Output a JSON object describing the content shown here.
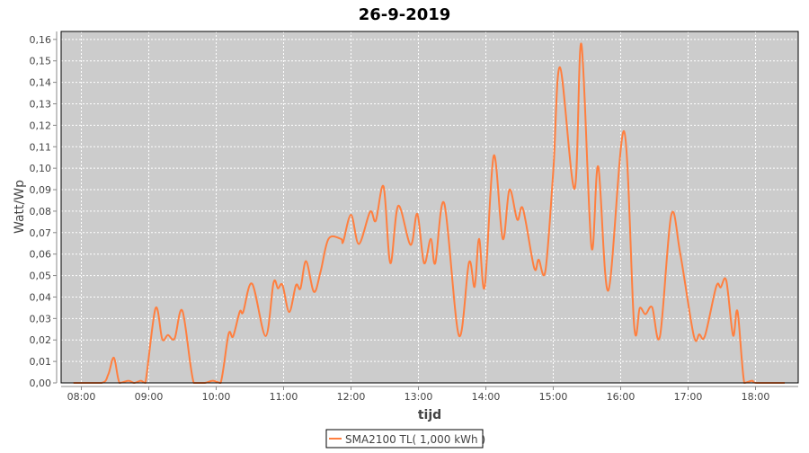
{
  "chart_data": {
    "type": "line",
    "title": "26-9-2019",
    "xlabel": "tijd",
    "ylabel": "Watt/Wp",
    "xlim": [
      "07:42",
      "18:38"
    ],
    "ylim": [
      0,
      0.1637
    ],
    "x_ticks": [
      "08:00",
      "09:00",
      "10:00",
      "11:00",
      "12:00",
      "13:00",
      "14:00",
      "15:00",
      "16:00",
      "17:00",
      "18:00"
    ],
    "y_ticks": [
      "0,00",
      "0,01",
      "0,02",
      "0,03",
      "0,04",
      "0,05",
      "0,06",
      "0,07",
      "0,08",
      "0,09",
      "0,10",
      "0,11",
      "0,12",
      "0,13",
      "0,14",
      "0,15",
      "0,16"
    ],
    "grid": true,
    "legend_placement": "bottom",
    "colors": {
      "series": "#ff7f3f",
      "plot_background": "#cccccc",
      "grid": "#ffffff"
    },
    "series": [
      {
        "name": "SMA2100 TL( 1,000 kWh )",
        "points": [
          [
            "07:53",
            0
          ],
          [
            "08:18",
            0
          ],
          [
            "08:24",
            0.004
          ],
          [
            "08:29",
            0.0117
          ],
          [
            "08:34",
            0
          ],
          [
            "08:42",
            0.001
          ],
          [
            "08:47",
            0
          ],
          [
            "08:53",
            0.001
          ],
          [
            "08:57",
            0
          ],
          [
            "09:06",
            0.0347
          ],
          [
            "09:12",
            0.0204
          ],
          [
            "09:17",
            0.0223
          ],
          [
            "09:23",
            0.0207
          ],
          [
            "09:30",
            0.0335
          ],
          [
            "09:40",
            0
          ],
          [
            "09:50",
            0
          ],
          [
            "09:57",
            0.001
          ],
          [
            "10:04",
            0
          ],
          [
            "10:11",
            0.0227
          ],
          [
            "10:15",
            0.0216
          ],
          [
            "10:21",
            0.0332
          ],
          [
            "10:24",
            0.033
          ],
          [
            "10:32",
            0.0462
          ],
          [
            "10:44",
            0.0218
          ],
          [
            "10:51",
            0.0466
          ],
          [
            "10:55",
            0.044
          ],
          [
            "10:59",
            0.0456
          ],
          [
            "11:05",
            0.033
          ],
          [
            "11:11",
            0.0455
          ],
          [
            "11:15",
            0.044
          ],
          [
            "11:20",
            0.0567
          ],
          [
            "11:27",
            0.0424
          ],
          [
            "11:33",
            0.052
          ],
          [
            "11:40",
            0.0671
          ],
          [
            "11:51",
            0.0671
          ],
          [
            "11:53",
            0.0657
          ],
          [
            "12:00",
            0.0783
          ],
          [
            "12:07",
            0.0647
          ],
          [
            "12:17",
            0.0797
          ],
          [
            "12:22",
            0.0755
          ],
          [
            "12:29",
            0.0914
          ],
          [
            "12:35",
            0.0558
          ],
          [
            "12:42",
            0.0825
          ],
          [
            "12:53",
            0.0643
          ],
          [
            "12:59",
            0.0787
          ],
          [
            "13:05",
            0.0558
          ],
          [
            "13:11",
            0.0671
          ],
          [
            "13:15",
            0.0558
          ],
          [
            "13:23",
            0.0836
          ],
          [
            "13:36",
            0.0221
          ],
          [
            "13:45",
            0.0561
          ],
          [
            "13:50",
            0.0448
          ],
          [
            "13:54",
            0.0671
          ],
          [
            "13:59",
            0.0448
          ],
          [
            "14:07",
            0.1058
          ],
          [
            "14:15",
            0.0671
          ],
          [
            "14:21",
            0.09
          ],
          [
            "14:28",
            0.076
          ],
          [
            "14:33",
            0.0811
          ],
          [
            "14:43",
            0.0536
          ],
          [
            "14:47",
            0.0574
          ],
          [
            "14:53",
            0.0522
          ],
          [
            "15:00",
            0.0985
          ],
          [
            "15:06",
            0.147
          ],
          [
            "15:19",
            0.0904
          ],
          [
            "15:25",
            0.1579
          ],
          [
            "15:34",
            0.0633
          ],
          [
            "15:40",
            0.1008
          ],
          [
            "15:49",
            0.043
          ],
          [
            "16:03",
            0.1172
          ],
          [
            "16:12",
            0.0266
          ],
          [
            "16:17",
            0.0349
          ],
          [
            "16:22",
            0.032
          ],
          [
            "16:28",
            0.0352
          ],
          [
            "16:35",
            0.0218
          ],
          [
            "16:45",
            0.0782
          ],
          [
            "16:53",
            0.0603
          ],
          [
            "17:05",
            0.0221
          ],
          [
            "17:10",
            0.0226
          ],
          [
            "17:15",
            0.0219
          ],
          [
            "17:25",
            0.0448
          ],
          [
            "17:29",
            0.0445
          ],
          [
            "17:34",
            0.0476
          ],
          [
            "17:40",
            0.0221
          ],
          [
            "17:44",
            0.0333
          ],
          [
            "17:50",
            0
          ],
          [
            "17:57",
            0.001
          ],
          [
            "18:01",
            0
          ],
          [
            "18:26",
            0
          ]
        ]
      }
    ]
  }
}
